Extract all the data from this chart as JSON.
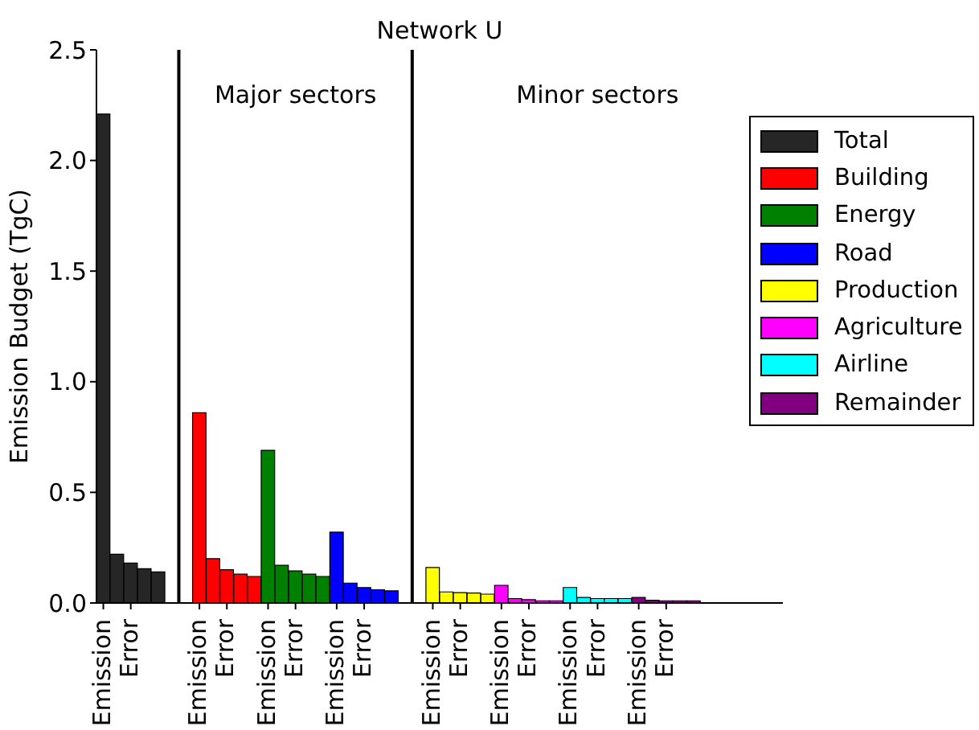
{
  "chart_data": {
    "type": "bar",
    "title": "Network U",
    "ylabel": "Emission Budget (TgC)",
    "annotations": [
      "Major sectors",
      "Minor sectors"
    ],
    "categories": [
      "Emission",
      null,
      "Error",
      null,
      null,
      null,
      null,
      "Emission",
      null,
      "Error",
      null,
      null,
      "Emission",
      null,
      "Error",
      null,
      null,
      "Emission",
      null,
      "Error",
      null,
      null,
      null,
      null,
      "Emission",
      null,
      "Error",
      null,
      null,
      "Emission",
      null,
      "Error",
      null,
      null,
      "Emission",
      null,
      "Error",
      null,
      null,
      "Emission",
      null,
      "Error",
      null,
      null,
      null,
      null,
      null,
      null,
      null,
      null
    ],
    "ylim": [
      0,
      2.5
    ],
    "yticks": [
      {
        "value": 0,
        "label": "0.0"
      },
      {
        "value": 0.5,
        "label": "0.5"
      },
      {
        "value": 1,
        "label": "1.0"
      },
      {
        "value": 1.5,
        "label": "1.5"
      },
      {
        "value": 2,
        "label": "2.0"
      },
      {
        "value": 2.5,
        "label": "2.5"
      }
    ],
    "series": [
      {
        "name": "Total",
        "color": "#262626",
        "values": [
          2.21,
          0.22,
          0.18,
          0.155,
          0.14,
          null,
          null,
          null,
          null,
          null,
          null,
          null,
          null,
          null,
          null,
          null,
          null,
          null,
          null,
          null,
          null,
          null,
          null,
          null,
          null,
          null,
          null,
          null,
          null,
          null,
          null,
          null,
          null,
          null,
          null,
          null,
          null,
          null,
          null,
          null,
          null,
          null,
          null,
          null,
          null,
          null,
          null,
          null,
          null,
          null
        ]
      },
      {
        "name": "Building",
        "color": "#ff0000",
        "values": [
          null,
          null,
          null,
          null,
          null,
          null,
          null,
          0.86,
          0.2,
          0.15,
          0.13,
          0.12,
          null,
          null,
          null,
          null,
          null,
          null,
          null,
          null,
          null,
          null,
          null,
          null,
          null,
          null,
          null,
          null,
          null,
          null,
          null,
          null,
          null,
          null,
          null,
          null,
          null,
          null,
          null,
          null,
          null,
          null,
          null,
          null,
          null,
          null,
          null,
          null,
          null,
          null
        ]
      },
      {
        "name": "Energy",
        "color": "#008000",
        "values": [
          null,
          null,
          null,
          null,
          null,
          null,
          null,
          null,
          null,
          null,
          null,
          null,
          0.69,
          0.17,
          0.145,
          0.13,
          0.12,
          null,
          null,
          null,
          null,
          null,
          null,
          null,
          null,
          null,
          null,
          null,
          null,
          null,
          null,
          null,
          null,
          null,
          null,
          null,
          null,
          null,
          null,
          null,
          null,
          null,
          null,
          null,
          null,
          null,
          null,
          null,
          null,
          null
        ]
      },
      {
        "name": "Road",
        "color": "#0000ff",
        "values": [
          null,
          null,
          null,
          null,
          null,
          null,
          null,
          null,
          null,
          null,
          null,
          null,
          null,
          null,
          null,
          null,
          null,
          0.32,
          0.09,
          0.07,
          0.06,
          0.055,
          null,
          null,
          null,
          null,
          null,
          null,
          null,
          null,
          null,
          null,
          null,
          null,
          null,
          null,
          null,
          null,
          null,
          null,
          null,
          null,
          null,
          null,
          null,
          null,
          null,
          null,
          null,
          null
        ]
      },
      {
        "name": "Production",
        "color": "#ffff00",
        "values": [
          null,
          null,
          null,
          null,
          null,
          null,
          null,
          null,
          null,
          null,
          null,
          null,
          null,
          null,
          null,
          null,
          null,
          null,
          null,
          null,
          null,
          null,
          null,
          null,
          0.16,
          0.05,
          0.047,
          0.045,
          0.04,
          null,
          null,
          null,
          null,
          null,
          null,
          null,
          null,
          null,
          null,
          null,
          null,
          null,
          null,
          null,
          null,
          null,
          null,
          null,
          null,
          null
        ]
      },
      {
        "name": "Agriculture",
        "color": "#ff00ff",
        "values": [
          null,
          null,
          null,
          null,
          null,
          null,
          null,
          null,
          null,
          null,
          null,
          null,
          null,
          null,
          null,
          null,
          null,
          null,
          null,
          null,
          null,
          null,
          null,
          null,
          null,
          null,
          null,
          null,
          null,
          0.08,
          0.02,
          0.015,
          0.01,
          0.01,
          null,
          null,
          null,
          null,
          null,
          null,
          null,
          null,
          null,
          null,
          null,
          null,
          null,
          null,
          null,
          null
        ]
      },
      {
        "name": "Airline",
        "color": "#00ffff",
        "values": [
          null,
          null,
          null,
          null,
          null,
          null,
          null,
          null,
          null,
          null,
          null,
          null,
          null,
          null,
          null,
          null,
          null,
          null,
          null,
          null,
          null,
          null,
          null,
          null,
          null,
          null,
          null,
          null,
          null,
          null,
          null,
          null,
          null,
          null,
          0.07,
          0.025,
          0.02,
          0.02,
          0.02,
          null,
          null,
          null,
          null,
          null,
          null,
          null,
          null,
          null,
          null,
          null
        ]
      },
      {
        "name": "Remainder",
        "color": "#800080",
        "values": [
          null,
          null,
          null,
          null,
          null,
          null,
          null,
          null,
          null,
          null,
          null,
          null,
          null,
          null,
          null,
          null,
          null,
          null,
          null,
          null,
          null,
          null,
          null,
          null,
          null,
          null,
          null,
          null,
          null,
          null,
          null,
          null,
          null,
          null,
          null,
          null,
          null,
          null,
          null,
          0.025,
          0.012,
          0.01,
          0.01,
          0.01,
          null,
          null,
          null,
          null,
          null,
          null
        ]
      }
    ],
    "legend": "right"
  }
}
